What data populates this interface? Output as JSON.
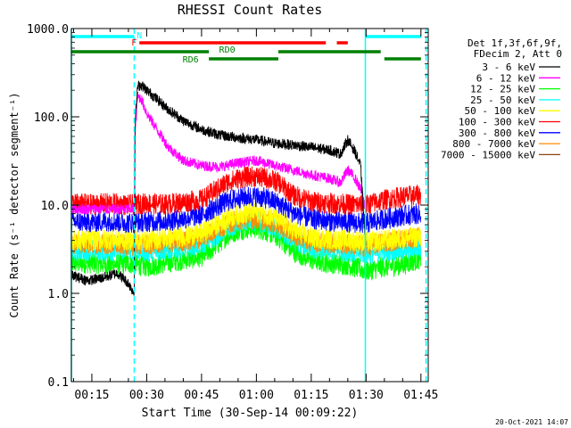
{
  "chart_data": {
    "type": "line",
    "title": "RHESSI Count Rates",
    "xlabel": "Start Time (30-Sep-14 00:09:22)",
    "ylabel": "Count Rate (s⁻¹ detector segment⁻¹)",
    "ylog": true,
    "ylim": [
      0.1,
      1000
    ],
    "xlim_minutes": [
      9.4,
      107
    ],
    "xtick_minutes": [
      15,
      30,
      45,
      60,
      75,
      90,
      105
    ],
    "xticks": [
      "00:15",
      "00:30",
      "00:45",
      "01:00",
      "01:15",
      "01:30",
      "01:45"
    ],
    "yticks": [
      "0.1",
      "1.0",
      "10.0",
      "100.0",
      "1000.0"
    ],
    "ytick_values": [
      0.1,
      1,
      10,
      100,
      1000
    ],
    "timestamp": "20-Oct-2021 14:07",
    "legend_header": [
      "Det 1f,3f,6f,9f,",
      "FDecim 2, Att 0"
    ],
    "series": [
      {
        "name": "3 - 6 keV",
        "color": "#000000",
        "x": [
          9.4,
          14,
          18,
          22,
          25,
          26.6,
          26.8,
          27.5,
          28.5,
          30,
          32,
          35,
          40,
          45,
          50,
          55,
          60,
          65,
          70,
          75,
          80,
          83,
          85,
          87,
          88.5,
          90
        ],
        "y": [
          1.6,
          1.4,
          1.5,
          1.7,
          1.3,
          1.0,
          80,
          220,
          230,
          200,
          170,
          130,
          90,
          72,
          62,
          58,
          55,
          50,
          48,
          45,
          42,
          38,
          55,
          40,
          28,
          3
        ]
      },
      {
        "name": "6 - 12 keV",
        "color": "#ff00ff",
        "x": [
          9.4,
          15,
          20,
          25,
          26.6,
          26.8,
          27.5,
          28.5,
          30,
          33,
          36,
          40,
          45,
          50,
          55,
          60,
          65,
          70,
          75,
          80,
          83,
          85,
          87,
          88.5,
          90
        ],
        "y": [
          9,
          9,
          9,
          9,
          9,
          60,
          170,
          160,
          110,
          70,
          45,
          32,
          28,
          27,
          30,
          32,
          28,
          25,
          22,
          20,
          18,
          25,
          20,
          15,
          9
        ]
      },
      {
        "name": "12 - 25 keV",
        "color": "#00ff00",
        "x": [
          9.4,
          15,
          20,
          25,
          30,
          35,
          40,
          45,
          48,
          52,
          55,
          58,
          60,
          63,
          66,
          70,
          75,
          80,
          85,
          90,
          95,
          100,
          105
        ],
        "y": [
          2.2,
          2.2,
          2.1,
          2.2,
          2.0,
          2.2,
          2.4,
          2.6,
          3.2,
          4.5,
          5.2,
          5.5,
          5.5,
          5.0,
          4.3,
          3.0,
          2.4,
          2.2,
          2.1,
          1.8,
          2.0,
          2.1,
          2.5
        ]
      },
      {
        "name": "25 - 50 keV",
        "color": "#00ffff",
        "x": [
          9.4,
          15,
          20,
          25,
          30,
          35,
          40,
          45,
          48,
          52,
          55,
          58,
          60,
          63,
          66,
          70,
          75,
          80,
          85,
          90,
          95,
          100,
          105
        ],
        "y": [
          3.0,
          3.1,
          3.0,
          3.2,
          3.0,
          3.1,
          3.3,
          3.6,
          4.2,
          5.5,
          6.2,
          6.5,
          6.6,
          6.0,
          5.3,
          4.0,
          3.3,
          3.1,
          3.0,
          2.8,
          3.0,
          3.1,
          3.4
        ]
      },
      {
        "name": "50 - 100 keV",
        "color": "#ffff00",
        "x": [
          9.4,
          15,
          20,
          25,
          30,
          35,
          40,
          45,
          48,
          52,
          55,
          58,
          60,
          63,
          66,
          70,
          75,
          80,
          85,
          90,
          95,
          100,
          105
        ],
        "y": [
          4.0,
          4.0,
          4.1,
          4.0,
          4.0,
          4.2,
          4.4,
          4.8,
          5.6,
          7.0,
          7.8,
          8.2,
          8.3,
          7.8,
          6.8,
          5.2,
          4.3,
          4.1,
          4.0,
          3.8,
          4.0,
          4.2,
          4.4
        ]
      },
      {
        "name": "100 - 300 keV",
        "color": "#ff0000",
        "x": [
          9.4,
          15,
          20,
          25,
          30,
          35,
          40,
          45,
          48,
          52,
          55,
          58,
          60,
          63,
          66,
          70,
          75,
          80,
          85,
          90,
          95,
          100,
          105
        ],
        "y": [
          10.5,
          10.2,
          10.5,
          10.0,
          10.5,
          10.2,
          10.8,
          11.5,
          14,
          18,
          20,
          21,
          21,
          20,
          18,
          13,
          11,
          10.5,
          10.2,
          10.0,
          11.5,
          12.5,
          13
        ]
      },
      {
        "name": "300 - 800 keV",
        "color": "#0000ff",
        "x": [
          9.4,
          15,
          20,
          25,
          30,
          35,
          40,
          45,
          48,
          52,
          55,
          58,
          60,
          63,
          66,
          70,
          75,
          80,
          85,
          90,
          95,
          100,
          105
        ],
        "y": [
          6.5,
          6.4,
          6.6,
          6.3,
          6.5,
          6.6,
          7.0,
          7.8,
          9.0,
          11,
          12,
          12.5,
          12.5,
          11.8,
          10.5,
          8.2,
          7.0,
          6.6,
          6.4,
          6.2,
          7.0,
          7.6,
          8.0
        ]
      },
      {
        "name": "800 - 7000 keV",
        "color": "#ff8c00",
        "x": [
          9.4,
          15,
          20,
          25,
          30,
          35,
          40,
          45,
          48,
          52,
          55,
          58,
          60,
          63,
          66,
          70,
          75,
          80,
          85,
          90,
          95,
          100,
          105
        ],
        "y": [
          3.6,
          3.7,
          3.6,
          3.5,
          3.6,
          3.7,
          3.9,
          4.3,
          5.0,
          6.2,
          6.8,
          7.0,
          7.0,
          6.6,
          6.0,
          4.7,
          3.9,
          3.7,
          3.6,
          3.4,
          3.8,
          4.1,
          4.3
        ]
      },
      {
        "name": "7000 - 15000 keV",
        "color": "#8b4513",
        "x": [],
        "y": []
      }
    ],
    "attenuator_bars": [
      {
        "label": "",
        "color": "#00ffff",
        "x0": 9.4,
        "x1": 26.6,
        "row": 1
      },
      {
        "label": "",
        "color": "#00ffff",
        "x0": 89.8,
        "x1": 105,
        "row": 1
      },
      {
        "label": "F",
        "color": "#ff0000",
        "x0": 28,
        "x1": 79,
        "row": 2
      },
      {
        "label": "",
        "color": "#ff0000",
        "x0": 82,
        "x1": 85,
        "row": 2
      },
      {
        "label": "",
        "color": "#008000",
        "x0": 9.4,
        "x1": 47,
        "row": 3
      },
      {
        "label": "",
        "color": "#008000",
        "x0": 66,
        "x1": 94,
        "row": 3
      },
      {
        "label": "",
        "color": "#008000",
        "x0": 47,
        "x1": 66,
        "row": 4
      },
      {
        "label": "",
        "color": "#008000",
        "x0": 95,
        "x1": 105,
        "row": 4
      }
    ],
    "bar_labels": [
      {
        "text": "N",
        "color": "#00ffff",
        "x": 28
      },
      {
        "text": "RD0",
        "color": "#008000",
        "x": 52
      },
      {
        "text": "RD6",
        "color": "#008000",
        "x": 42
      }
    ],
    "vlines": [
      {
        "x": 9.4,
        "style": "solid",
        "color": "#00ffff"
      },
      {
        "x": 26.6,
        "style": "dashed",
        "color": "#00ffff"
      },
      {
        "x": 89.8,
        "style": "solid",
        "color": "#00ffff"
      },
      {
        "x": 106.4,
        "style": "dashed",
        "color": "#00ffff"
      }
    ]
  }
}
